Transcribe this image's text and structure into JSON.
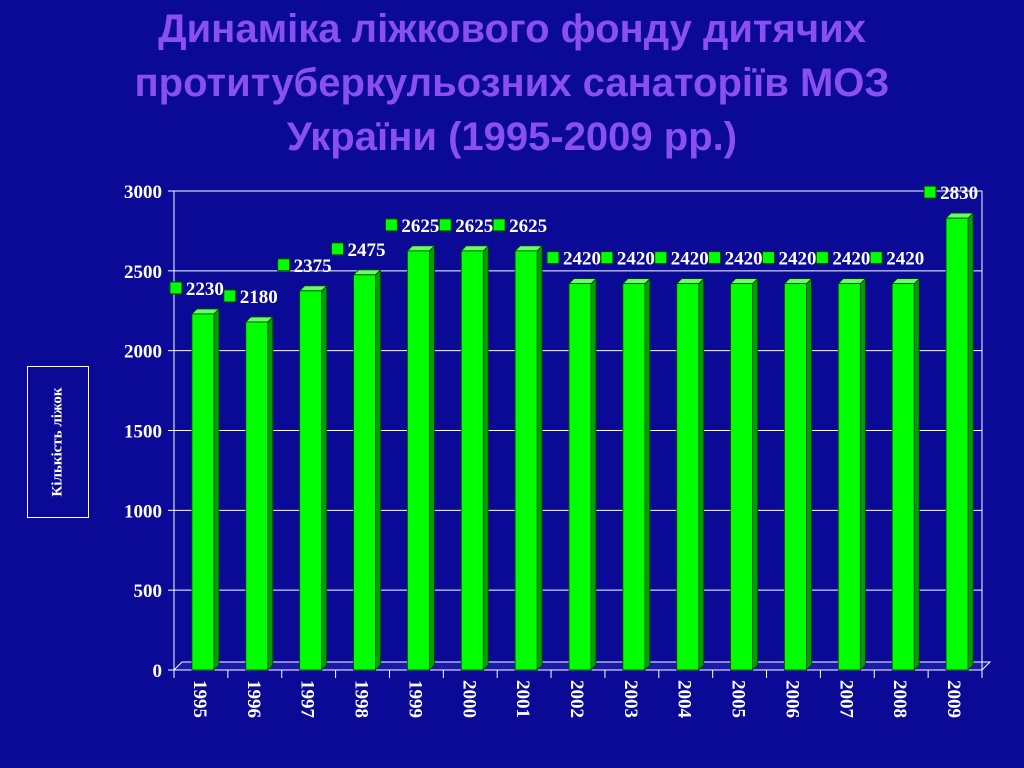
{
  "title_lines": [
    "Динаміка ліжкового фонду дитячих",
    "протитуберкульозних санаторіїв МОЗ",
    "України (1995-2009 рр.)"
  ],
  "colors": {
    "background": "#0a0a96",
    "title": "#8a4ff0",
    "bar": "#00ff00",
    "axis": "#ffffff"
  },
  "chart_data": {
    "type": "bar",
    "title": "Динаміка ліжкового фонду дитячих протитуберкульозних санаторіїв МОЗ України (1995-2009 рр.)",
    "ylabel": "Кількість ліжок",
    "xlabel": "",
    "categories": [
      "1995",
      "1996",
      "1997",
      "1998",
      "1999",
      "2000",
      "2001",
      "2002",
      "2003",
      "2004",
      "2005",
      "2006",
      "2007",
      "2008",
      "2009"
    ],
    "values": [
      2230,
      2180,
      2375,
      2475,
      2625,
      2625,
      2625,
      2420,
      2420,
      2420,
      2420,
      2420,
      2420,
      2420,
      2830
    ],
    "data_labels": [
      "2230",
      "2180",
      "2375",
      "2475",
      "2625",
      "2625",
      "2625",
      "2420",
      "2420",
      "2420",
      "2420",
      "2420",
      "2420",
      "2420",
      "2830"
    ],
    "ylim": [
      0,
      3000
    ],
    "yticks": [
      "0",
      "500",
      "1000",
      "1500",
      "2000",
      "2500",
      "3000"
    ],
    "grid": true,
    "legend": "none"
  }
}
